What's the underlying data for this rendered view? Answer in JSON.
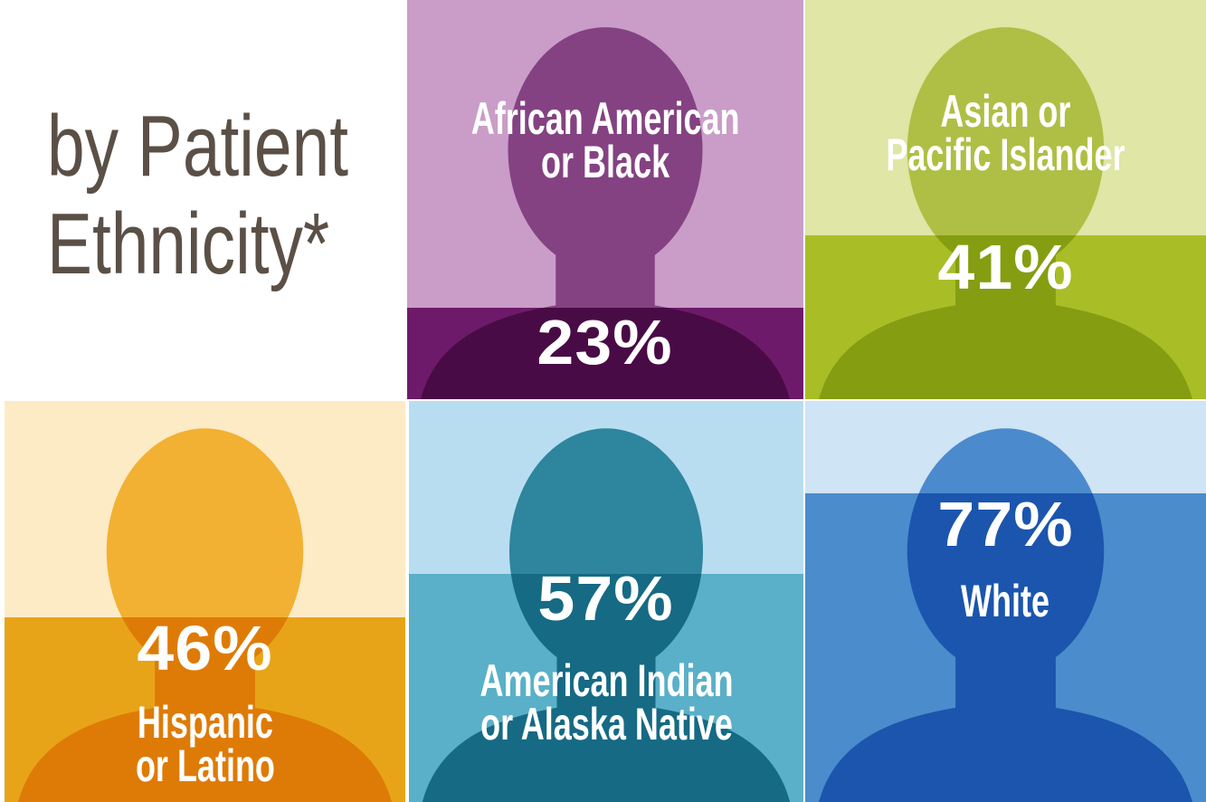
{
  "chart_data": {
    "type": "pictorial-fill",
    "title": "by Patient\nEthnicity*",
    "categories": [
      "African American\nor Black",
      "Asian or\nPacific Islander",
      "Hispanic\nor Latino",
      "American Indian\nor Alaska Native",
      "White"
    ],
    "values": [
      23,
      41,
      46,
      57,
      77
    ],
    "value_labels": [
      "23%",
      "41%",
      "46%",
      "57%",
      "77%"
    ],
    "colors": [
      "#6e1a6a",
      "#a9bd27",
      "#e8a418",
      "#5ab0c8",
      "#4a8ccc"
    ],
    "ylim": [
      0,
      100
    ]
  }
}
